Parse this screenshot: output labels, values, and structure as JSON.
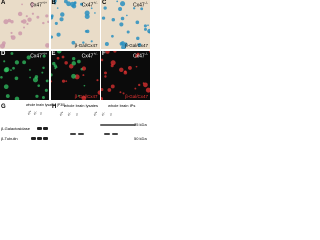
{
  "panels": [
    {
      "letter": "A",
      "marker": "Cx47",
      "genotype": "+/+"
    },
    {
      "letter": "B",
      "marker": "Cx47",
      "genotype": "+/-",
      "stain": "β-Gal/Cx47"
    },
    {
      "letter": "C",
      "marker": "Cx47",
      "genotype": "-/-",
      "stain": "β-Gal/Cx47"
    },
    {
      "letter": "D",
      "marker": "Cx47",
      "genotype": "+/+"
    },
    {
      "letter": "E",
      "marker": "Cx47",
      "genotype": "+/-",
      "stain": "β-Gal/Cx47"
    },
    {
      "letter": "F",
      "marker": "Cx47",
      "genotype": "-/-",
      "stain": "β-Gal/Cx47"
    }
  ],
  "blot_g": {
    "letter": "G",
    "title": "whole brain lysates (P30)",
    "lanes": [
      "+/+",
      "+/-",
      "-/-"
    ],
    "rows": [
      "β-Galactosidase",
      "β-Tubulin"
    ]
  },
  "blot_h": {
    "letter": "H",
    "group_left": "whole brain lysates",
    "group_right": "whole brain IPs",
    "lanes": [
      "+/+",
      "+/-",
      "-/-",
      "+/+",
      "+/-",
      "-/-"
    ],
    "markers": [
      "75 kDa",
      "50 kDa"
    ]
  }
}
